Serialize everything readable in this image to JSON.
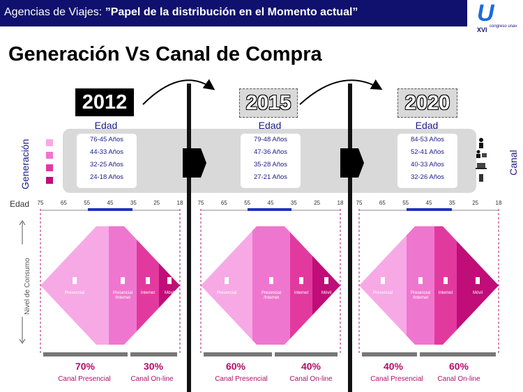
{
  "header": {
    "title_prefix": "Agencias de Viajes: ",
    "title_bold": "”Papel de la distribución en el Momento actual”",
    "logo_text": "XVI",
    "logo_sub": "congreso unav"
  },
  "page_title": "Generación Vs Canal de Compra",
  "labels": {
    "generacion": "Generación",
    "canal": "Canal",
    "edad_axis": "Edad",
    "nivel_consumo": "Nivel de Consumo"
  },
  "ticks": [
    "75",
    "65",
    "55",
    "45",
    "35",
    "25",
    "18"
  ],
  "colors": {
    "header_bg": "#10106e",
    "gen1": "#f7a9e6",
    "gen2": "#ef76cf",
    "gen3": "#e2399f",
    "gen4": "#c00d77",
    "accent_text": "#b0106a"
  },
  "panels": [
    {
      "year": "2012",
      "edad_label": "Edad",
      "ages": [
        "76-45 Años",
        "44-33 Años",
        "32-25 Años",
        "24-18 Años"
      ],
      "segments": [
        "Presencial",
        "Presencial /Internet",
        "Internet",
        "Móvil"
      ],
      "presencial_pct": "70%",
      "online_pct": "30%",
      "presencial_label": "Canal Presencial",
      "online_label": "Canal On-line"
    },
    {
      "year": "2015",
      "edad_label": "Edad",
      "ages": [
        "79-48 Años",
        "47-36 Años",
        "35-28 Años",
        "27-21 Años"
      ],
      "segments": [
        "Presencial",
        "Presencial /Internet",
        "Internet",
        "Móvil"
      ],
      "presencial_pct": "60%",
      "online_pct": "40%",
      "presencial_label": "Canal Presencial",
      "online_label": "Canal On-line"
    },
    {
      "year": "2020",
      "edad_label": "Edad",
      "ages": [
        "84-53 Años",
        "52-41 Años",
        "40-33 Años",
        "32-26 Años"
      ],
      "segments": [
        "Presencial",
        "Presencial /Internet",
        "Internet",
        "Móvil"
      ],
      "presencial_pct": "40%",
      "online_pct": "60%",
      "presencial_label": "Canal Presencial",
      "online_label": "Canal On-line"
    }
  ]
}
